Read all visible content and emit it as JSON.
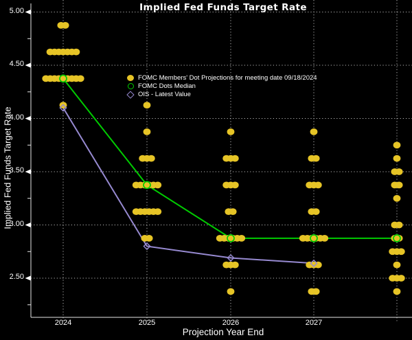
{
  "title": "Implied Fed Funds Target Rate",
  "axes": {
    "y_label": "Implied Fed Funds Target Rate",
    "x_label": "Projection Year End",
    "y_ticks": [
      "5.00",
      "4.50",
      "4.00",
      "3.50",
      "3.00",
      "2.50"
    ],
    "x_ticks": [
      "2024",
      "2025",
      "2026",
      "2027"
    ]
  },
  "legend": {
    "items": [
      {
        "marker": "filled-circle",
        "label": "FOMC Members' Dot Projections for meeting date 09/18/2024"
      },
      {
        "marker": "open-circle",
        "label": "FOMC Dots Median"
      },
      {
        "marker": "open-diamond",
        "label": "OIS - Latest Value"
      }
    ]
  },
  "colors": {
    "background": "#000000",
    "dots": "#e6c426",
    "median": "#00cc00",
    "ois": "#978ad1",
    "grid": "#d8d8d8",
    "axis": "#e8e8e8",
    "text": "#ffffff"
  },
  "chart_data": {
    "type": "scatter",
    "title": "Implied Fed Funds Target Rate",
    "xlabel": "Projection Year End",
    "ylabel": "Implied Fed Funds Target Rate",
    "x_categories": [
      "2024",
      "2025",
      "2026",
      "2027",
      ""
    ],
    "y_axis": {
      "min": 2.125,
      "max": 5.1,
      "major_ticks": [
        5.0,
        4.5,
        4.0,
        3.5,
        3.0,
        2.5
      ],
      "minor_ticks": [
        4.75,
        4.25,
        3.75,
        3.25,
        2.75,
        2.25
      ],
      "grid": "dotted"
    },
    "series": [
      {
        "name": "FOMC Members' Dot Projections for meeting date 09/18/2024",
        "type": "dot-cluster",
        "clusters": [
          {
            "category": "2024",
            "rows": [
              {
                "rate": 4.875,
                "count": 2
              },
              {
                "rate": 4.625,
                "count": 7
              },
              {
                "rate": 4.375,
                "count": 9
              },
              {
                "rate": 4.125,
                "count": 1
              }
            ]
          },
          {
            "category": "2025",
            "rows": [
              {
                "rate": 4.125,
                "count": 1
              },
              {
                "rate": 3.875,
                "count": 1
              },
              {
                "rate": 3.625,
                "count": 3
              },
              {
                "rate": 3.375,
                "count": 6
              },
              {
                "rate": 3.125,
                "count": 6
              },
              {
                "rate": 2.875,
                "count": 2
              }
            ]
          },
          {
            "category": "2026",
            "rows": [
              {
                "rate": 3.875,
                "count": 1
              },
              {
                "rate": 3.625,
                "count": 3
              },
              {
                "rate": 3.375,
                "count": 3
              },
              {
                "rate": 3.125,
                "count": 2
              },
              {
                "rate": 2.875,
                "count": 6
              },
              {
                "rate": 2.625,
                "count": 3
              },
              {
                "rate": 2.375,
                "count": 1
              }
            ]
          },
          {
            "category": "2027",
            "rows": [
              {
                "rate": 3.875,
                "count": 1
              },
              {
                "rate": 3.625,
                "count": 2
              },
              {
                "rate": 3.375,
                "count": 3
              },
              {
                "rate": 3.125,
                "count": 2
              },
              {
                "rate": 2.875,
                "count": 6
              },
              {
                "rate": 2.625,
                "count": 3
              },
              {
                "rate": 2.375,
                "count": 2
              }
            ]
          },
          {
            "category": "",
            "rows": [
              {
                "rate": 3.75,
                "count": 1
              },
              {
                "rate": 3.625,
                "count": 1
              },
              {
                "rate": 3.5,
                "count": 2
              },
              {
                "rate": 3.375,
                "count": 2
              },
              {
                "rate": 3.25,
                "count": 1
              },
              {
                "rate": 3.0,
                "count": 2
              },
              {
                "rate": 2.875,
                "count": 2
              },
              {
                "rate": 2.75,
                "count": 3
              },
              {
                "rate": 2.625,
                "count": 1
              },
              {
                "rate": 2.5,
                "count": 3
              },
              {
                "rate": 2.375,
                "count": 1
              }
            ]
          }
        ]
      },
      {
        "name": "FOMC Dots Median",
        "type": "line-open-circle",
        "values": [
          4.375,
          3.375,
          2.875,
          2.875,
          2.875
        ]
      },
      {
        "name": "OIS - Latest Value",
        "type": "line-open-diamond",
        "values": [
          4.1,
          2.8,
          2.69,
          2.64,
          null
        ]
      }
    ]
  }
}
